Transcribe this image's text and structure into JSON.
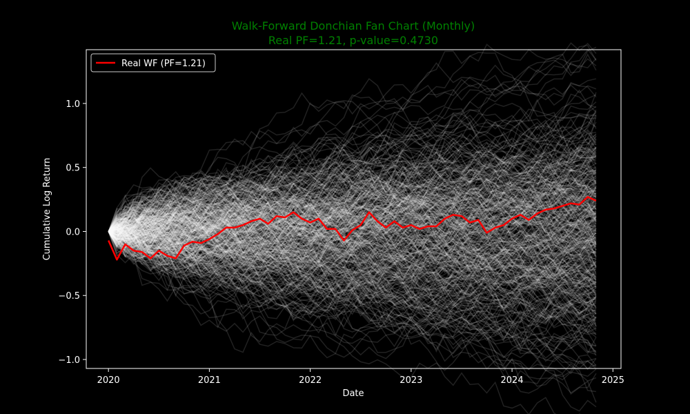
{
  "chart_data": {
    "type": "line",
    "title": "Walk-Forward Donchian Fan Chart (Monthly)",
    "subtitle": "Real PF=1.21, p-value=0.4730",
    "xlabel": "Date",
    "ylabel": "Cumulative Log Return",
    "x_ticks": [
      "2020",
      "2021",
      "2022",
      "2023",
      "2024",
      "2025"
    ],
    "y_ticks": [
      -1.0,
      -0.5,
      0.0,
      0.5,
      1.0
    ],
    "y_tick_labels": [
      "−1.0",
      "−0.5",
      "0.0",
      "0.5",
      "1.0"
    ],
    "xlim": [
      2019.78,
      2025.08
    ],
    "ylim": [
      -1.07,
      1.42
    ],
    "grid": false,
    "legend": {
      "placement": "top-left",
      "entries": [
        "Real WF (PF=1.21)"
      ]
    },
    "colors": {
      "background": "#000000",
      "title": "#008000",
      "real_line": "#ff0000",
      "simulations": "#ffffff",
      "axes": "#ffffff"
    },
    "simulations": {
      "count": 400,
      "periods": 59,
      "step_sd": 0.0655,
      "opacity": 0.13
    },
    "series": [
      {
        "name": "Real WF (PF=1.21)",
        "x": [
          "2020-01",
          "2020-02",
          "2020-03",
          "2020-04",
          "2020-05",
          "2020-06",
          "2020-07",
          "2020-08",
          "2020-09",
          "2020-10",
          "2020-11",
          "2020-12",
          "2021-01",
          "2021-02",
          "2021-03",
          "2021-04",
          "2021-05",
          "2021-06",
          "2021-07",
          "2021-08",
          "2021-09",
          "2021-10",
          "2021-11",
          "2021-12",
          "2022-01",
          "2022-02",
          "2022-03",
          "2022-04",
          "2022-05",
          "2022-06",
          "2022-07",
          "2022-08",
          "2022-09",
          "2022-10",
          "2022-11",
          "2022-12",
          "2023-01",
          "2023-02",
          "2023-03",
          "2023-04",
          "2023-05",
          "2023-06",
          "2023-07",
          "2023-08",
          "2023-09",
          "2023-10",
          "2023-11",
          "2023-12",
          "2024-01",
          "2024-02",
          "2024-03",
          "2024-04",
          "2024-05",
          "2024-06",
          "2024-07",
          "2024-08",
          "2024-09",
          "2024-10",
          "2024-11"
        ],
        "values": [
          -0.07,
          -0.22,
          -0.1,
          -0.15,
          -0.16,
          -0.21,
          -0.15,
          -0.19,
          -0.21,
          -0.11,
          -0.08,
          -0.09,
          -0.06,
          -0.02,
          0.03,
          0.03,
          0.05,
          0.08,
          0.1,
          0.06,
          0.12,
          0.11,
          0.15,
          0.1,
          0.07,
          0.1,
          0.02,
          0.02,
          -0.07,
          0.01,
          0.05,
          0.15,
          0.08,
          0.03,
          0.08,
          0.03,
          0.05,
          0.02,
          0.04,
          0.04,
          0.1,
          0.13,
          0.12,
          0.07,
          0.09,
          -0.01,
          0.03,
          0.05,
          0.1,
          0.13,
          0.09,
          0.14,
          0.17,
          0.18,
          0.2,
          0.22,
          0.21,
          0.27,
          0.24
        ]
      }
    ]
  }
}
